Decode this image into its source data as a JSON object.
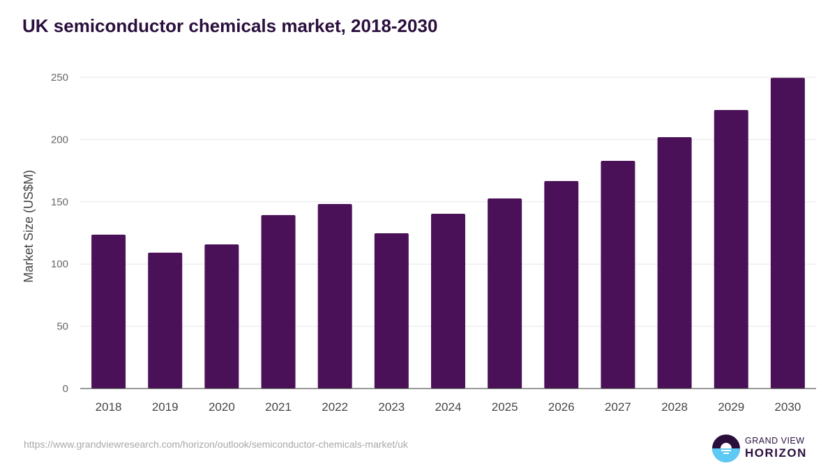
{
  "chart_data": {
    "type": "bar",
    "title": "UK semiconductor chemicals market, 2018-2030",
    "xlabel": "",
    "ylabel": "Market Size (US$M)",
    "categories": [
      "2018",
      "2019",
      "2020",
      "2021",
      "2022",
      "2023",
      "2024",
      "2025",
      "2026",
      "2027",
      "2028",
      "2029",
      "2030"
    ],
    "values": [
      123.6,
      109.1,
      115.8,
      139.3,
      148.2,
      124.7,
      140.4,
      152.7,
      166.7,
      182.9,
      201.9,
      223.7,
      249.6
    ],
    "ylim": [
      0,
      250
    ],
    "yticks": [
      0,
      50,
      100,
      150,
      200,
      250
    ],
    "grid": true,
    "bar_color": "#4b1158"
  },
  "source": "https://www.grandviewresearch.com/horizon/outlook/semiconductor-chemicals-market/uk",
  "logo": {
    "line1": "GRAND VIEW",
    "line2": "HORIZON"
  }
}
